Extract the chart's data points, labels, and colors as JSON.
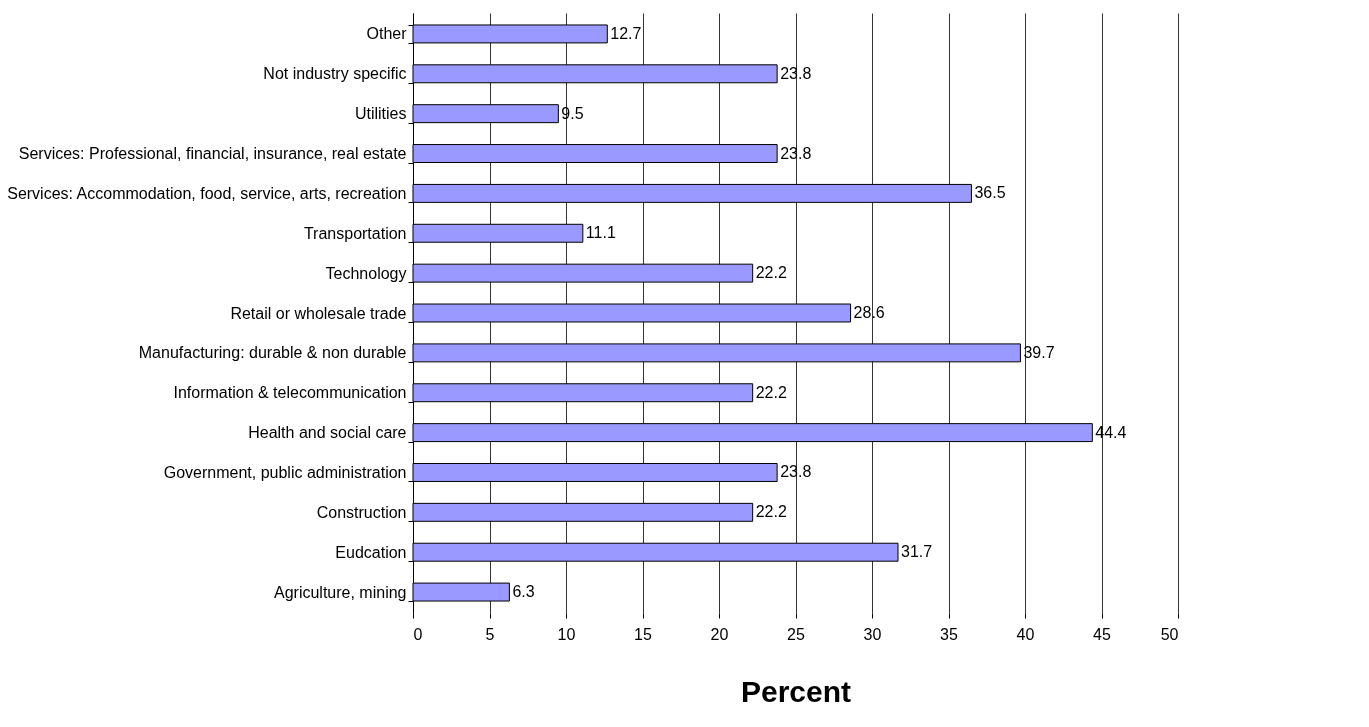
{
  "chart_data": {
    "type": "bar",
    "orientation": "horizontal",
    "xlabel": "Percent",
    "categories": [
      "Other",
      "Not industry specific",
      "Utilities",
      "Services: Professional, financial, insurance, real estate",
      "Services: Accommodation, food, service, arts, recreation",
      "Transportation",
      "Technology",
      "Retail or wholesale trade",
      "Manufacturing: durable & non durable",
      "Information & telecommunication",
      "Health and social care",
      "Government, public administration",
      "Construction",
      "Eudcation",
      "Agriculture, mining"
    ],
    "values": [
      12.7,
      23.8,
      9.5,
      23.8,
      36.5,
      11.1,
      22.2,
      28.6,
      39.7,
      22.2,
      44.4,
      23.8,
      22.2,
      31.7,
      6.3
    ],
    "color": "#9999ff",
    "xlim": [
      0,
      50
    ],
    "xticks": [
      0,
      5,
      10,
      15,
      20,
      25,
      30,
      35,
      40,
      45,
      50
    ],
    "grid": "x",
    "data_labels": true
  }
}
